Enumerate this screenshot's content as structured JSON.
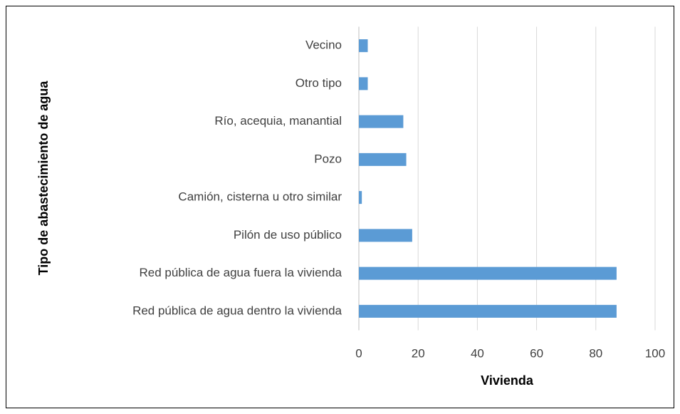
{
  "chart_data": {
    "type": "barh",
    "x_label": "Vivienda",
    "y_label": "Tipo de abastecimiento de agua",
    "categories": [
      "Vecino",
      "Otro tipo",
      "Río, acequia, manantial",
      "Pozo",
      "Camión, cisterna u otro similar",
      "Pilón de uso público",
      "Red pública de agua fuera la vivienda",
      "Red pública de agua dentro la vivienda"
    ],
    "values": [
      3,
      3,
      15,
      16,
      1,
      18,
      87,
      87
    ],
    "color": "#5b9bd5",
    "xlim": [
      0,
      100
    ],
    "xticks": [
      0,
      20,
      40,
      60,
      80,
      100
    ],
    "grid": true
  }
}
